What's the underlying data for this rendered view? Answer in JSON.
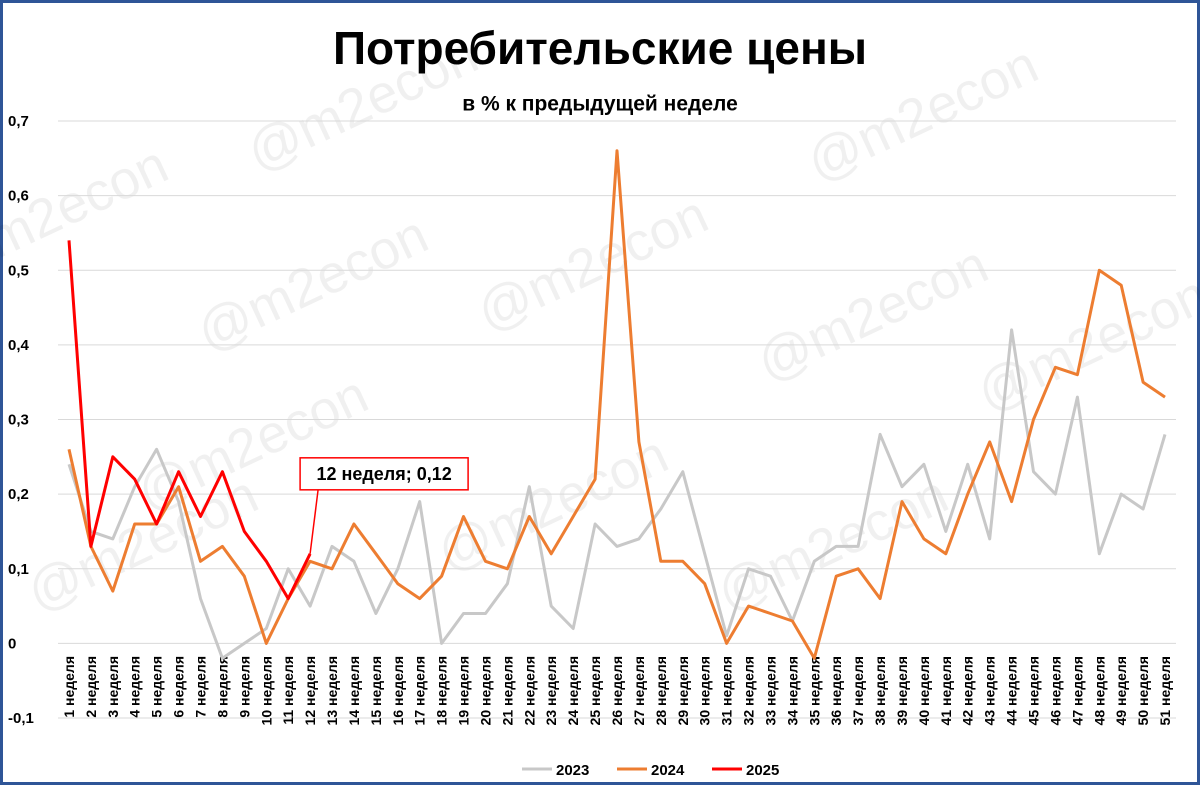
{
  "chart_data": {
    "type": "line",
    "title": "Потребительские цены",
    "subtitle": "в % к предыдущей неделе",
    "watermark": "@m2econ",
    "categories": [
      "1 неделя",
      "2 неделя",
      "3 неделя",
      "4 неделя",
      "5 неделя",
      "6 неделя",
      "7 неделя",
      "8 неделя",
      "9 неделя",
      "10 неделя",
      "11 неделя",
      "12 неделя",
      "13 неделя",
      "14 неделя",
      "15 неделя",
      "16 неделя",
      "17 неделя",
      "18 неделя",
      "19 неделя",
      "20 неделя",
      "21 неделя",
      "22 неделя",
      "23 неделя",
      "24 неделя",
      "25 неделя",
      "26 неделя",
      "27 неделя",
      "28 неделя",
      "29 неделя",
      "30 неделя",
      "31 неделя",
      "32 неделя",
      "33 неделя",
      "34 неделя",
      "35 неделя",
      "36 неделя",
      "37 неделя",
      "38 неделя",
      "39 неделя",
      "40 неделя",
      "41 неделя",
      "42 неделя",
      "43 неделя",
      "44 неделя",
      "45 неделя",
      "46 неделя",
      "47 неделя",
      "48 неделя",
      "49 неделя",
      "50 неделя",
      "51 неделя"
    ],
    "series": [
      {
        "name": "2023",
        "color": "#c8c8c8",
        "values": [
          0.24,
          0.15,
          0.14,
          0.21,
          0.26,
          0.19,
          0.06,
          -0.02,
          0.0,
          0.02,
          0.1,
          0.05,
          0.13,
          0.11,
          0.04,
          0.1,
          0.19,
          0.0,
          0.04,
          0.04,
          0.08,
          0.21,
          0.05,
          0.02,
          0.16,
          0.13,
          0.14,
          0.18,
          0.23,
          0.12,
          0.01,
          0.1,
          0.09,
          0.03,
          0.11,
          0.13,
          0.13,
          0.28,
          0.21,
          0.24,
          0.15,
          0.24,
          0.14,
          0.42,
          0.23,
          0.2,
          0.33,
          0.12,
          0.2,
          0.18,
          0.28
        ]
      },
      {
        "name": "2024",
        "color": "#ed7d31",
        "values": [
          0.26,
          0.13,
          0.07,
          0.16,
          0.16,
          0.21,
          0.11,
          0.13,
          0.09,
          0.0,
          0.06,
          0.11,
          0.1,
          0.16,
          0.12,
          0.08,
          0.06,
          0.09,
          0.17,
          0.11,
          0.1,
          0.17,
          0.12,
          0.17,
          0.22,
          0.66,
          0.27,
          0.11,
          0.11,
          0.08,
          0.0,
          0.05,
          0.04,
          0.03,
          -0.02,
          0.09,
          0.1,
          0.06,
          0.19,
          0.14,
          0.12,
          0.2,
          0.27,
          0.19,
          0.3,
          0.37,
          0.36,
          0.5,
          0.48,
          0.35,
          0.33
        ]
      },
      {
        "name": "2025",
        "color": "#ff0000",
        "values": [
          0.54,
          0.13,
          0.25,
          0.22,
          0.16,
          0.23,
          0.17,
          0.23,
          0.15,
          0.11,
          0.06,
          0.12,
          null,
          null,
          null,
          null,
          null,
          null,
          null,
          null,
          null,
          null,
          null,
          null,
          null,
          null,
          null,
          null,
          null,
          null,
          null,
          null,
          null,
          null,
          null,
          null,
          null,
          null,
          null,
          null,
          null,
          null,
          null,
          null,
          null,
          null,
          null,
          null,
          null,
          null,
          null
        ],
        "value_labels": [
          null,
          null,
          null,
          null,
          null,
          null,
          null,
          null,
          null,
          null,
          null,
          "12 неделя; 0,12",
          null,
          null,
          null,
          null,
          null,
          null,
          null,
          null,
          null,
          null,
          null,
          null,
          null,
          null,
          null,
          null,
          null,
          null,
          null,
          null,
          null,
          null,
          null,
          null,
          null,
          null,
          null,
          null,
          null,
          null,
          null,
          null,
          null,
          null,
          null,
          null,
          null,
          null,
          null
        ]
      }
    ],
    "ylim": [
      -0.1,
      0.7
    ],
    "yticks": [
      {
        "value": -0.1,
        "label": "-0,1"
      },
      0,
      {
        "value": 0.1,
        "label": "0,1"
      },
      {
        "value": 0.2,
        "label": "0,2"
      },
      {
        "value": 0.3,
        "label": "0,3"
      },
      {
        "value": 0.4,
        "label": "0,4"
      },
      {
        "value": 0.5,
        "label": "0,5"
      },
      {
        "value": 0.6,
        "label": "0,6"
      },
      {
        "value": 0.7,
        "label": "0,7"
      }
    ],
    "grid": true
  }
}
